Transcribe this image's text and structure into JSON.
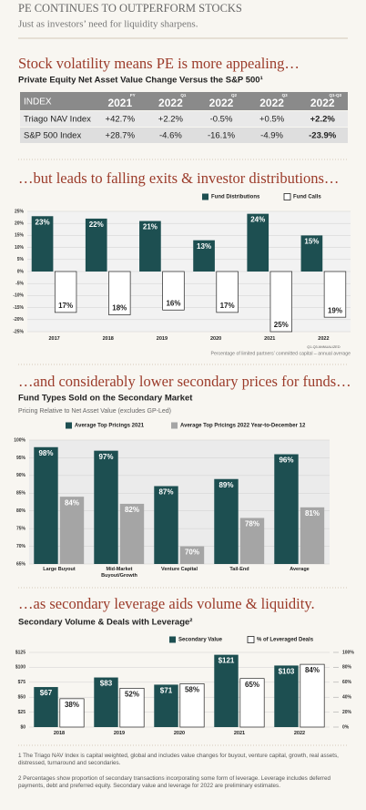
{
  "header": {
    "title": "PE CONTINUES TO OUTPERFORM STOCKS",
    "subtitle": "Just as investors’ need for liquidity sharpens."
  },
  "table_section": {
    "heading": "Stock volatility means PE is more appealing…",
    "subheading": "Private Equity Net Asset Value Change Versus the S&P 500¹"
  },
  "table": {
    "index_header": "INDEX",
    "columns": [
      {
        "period": "FY",
        "year": "2021"
      },
      {
        "period": "Q1",
        "year": "2022"
      },
      {
        "period": "Q2",
        "year": "2022"
      },
      {
        "period": "Q3",
        "year": "2022"
      },
      {
        "period": "Q1-Q3",
        "year": "2022"
      }
    ],
    "rows": [
      [
        "Triago NAV Index",
        "+42.7%",
        "+2.2%",
        "-0.5%",
        "+0.5%",
        "+2.2%"
      ],
      [
        "S&P 500  Index",
        "+28.7%",
        "-4.6%",
        "-16.1%",
        "-4.9%",
        "-23.9%"
      ]
    ]
  },
  "chart_data": [
    {
      "type": "bar",
      "title": "…but leads to falling exits & investor distributions…",
      "categories": [
        "2017",
        "2018",
        "2019",
        "2020",
        "2021",
        "2022"
      ],
      "category_note": "Q1-Q3 ANNUALIZED",
      "series": [
        {
          "name": "Fund Distributions",
          "color": "#1d4f51",
          "values": [
            23,
            22,
            21,
            13,
            24,
            15
          ],
          "value_labels": [
            "23%",
            "22%",
            "21%",
            "13%",
            "24%",
            "15%"
          ]
        },
        {
          "name": "Fund Calls",
          "color": "#ffffff",
          "values": [
            -17,
            -18,
            -16,
            -17,
            -25,
            -19
          ],
          "value_labels": [
            "17%",
            "18%",
            "16%",
            "17%",
            "25%",
            "19%"
          ]
        }
      ],
      "ylim": [
        -25,
        25
      ],
      "yticks": [
        {
          "value": 25,
          "label": "25%"
        },
        {
          "value": 20,
          "label": "20%"
        },
        {
          "value": 15,
          "label": "15%"
        },
        {
          "value": 10,
          "label": "10%"
        },
        {
          "value": 5,
          "label": "5%"
        },
        {
          "value": 0,
          "label": "0%"
        },
        {
          "value": -5,
          "label": "-5%"
        },
        {
          "value": -10,
          "label": "-10%"
        },
        {
          "value": -15,
          "label": "-15%"
        },
        {
          "value": -20,
          "label": "-20%"
        },
        {
          "value": -25,
          "label": "-25%"
        }
      ],
      "grid": true,
      "note": "Percentage of limited partners’ committed capital – annual average"
    },
    {
      "type": "bar",
      "title": "…and considerably lower secondary prices for funds…",
      "subtitle": "Fund Types Sold on the Secondary Market",
      "description": "Pricing Relative to Net Asset Value (excludes GP-Led)",
      "categories": [
        "Large Buyout",
        "Mid-Market Buyout/Growth",
        "Venture Capital",
        "Tail-End",
        "Average"
      ],
      "series": [
        {
          "name": "Average Top Pricings 2021",
          "color": "#1d4f51",
          "values": [
            98,
            97,
            87,
            89,
            96
          ],
          "value_labels": [
            "98%",
            "97%",
            "87%",
            "89%",
            "96%"
          ]
        },
        {
          "name": "Average Top Pricings 2022 Year-to-December 12",
          "color": "#a5a5a5",
          "values": [
            84,
            82,
            70,
            78,
            81
          ],
          "value_labels": [
            "84%",
            "82%",
            "70%",
            "78%",
            "81%"
          ]
        }
      ],
      "ylim": [
        65,
        100
      ],
      "yticks": [
        {
          "value": 100,
          "label": "100%"
        },
        {
          "value": 95,
          "label": "95%"
        },
        {
          "value": 90,
          "label": "90%"
        },
        {
          "value": 85,
          "label": "85%"
        },
        {
          "value": 80,
          "label": "80%"
        },
        {
          "value": 75,
          "label": "75%"
        },
        {
          "value": 70,
          "label": "70%"
        },
        {
          "value": 65,
          "label": "65%"
        }
      ],
      "grid": true
    },
    {
      "type": "bar",
      "title": "…as secondary leverage aids volume & liquidity.",
      "subtitle": "Secondary Volume & Deals with Leverage²",
      "categories": [
        "2018",
        "2019",
        "2020",
        "2021",
        "2022"
      ],
      "series": [
        {
          "name": "Secondary Value",
          "color": "#1d4f51",
          "values": [
            67,
            83,
            71,
            121,
            103
          ],
          "value_labels": [
            "$67",
            "$83",
            "$71",
            "$121",
            "$103"
          ]
        },
        {
          "name": "% of Leveraged Deals",
          "color": "#ffffff",
          "axis": "y2",
          "values": [
            38,
            52,
            58,
            65,
            84
          ],
          "value_labels": [
            "38%",
            "52%",
            "58%",
            "65%",
            "84%"
          ]
        }
      ],
      "ylim": [
        0,
        125
      ],
      "yticks": [
        {
          "value": 125,
          "label": "$125"
        },
        {
          "value": 100,
          "label": "$100"
        },
        {
          "value": 75,
          "label": "$75"
        },
        {
          "value": 50,
          "label": "$50"
        },
        {
          "value": 25,
          "label": "$25"
        },
        {
          "value": 0,
          "label": "$0"
        }
      ],
      "y2lim": [
        0,
        100
      ],
      "y2ticks": [
        {
          "value": 100,
          "label": "100%"
        },
        {
          "value": 80,
          "label": "80%"
        },
        {
          "value": 60,
          "label": "60%"
        },
        {
          "value": 40,
          "label": "40%"
        },
        {
          "value": 20,
          "label": "20%"
        },
        {
          "value": 0,
          "label": "0%"
        }
      ],
      "grid": true
    }
  ],
  "footnotes": [
    "1 The Triago NAV Index is capital weighted, global and includes value changes for buyout, venture capital, growth, real assets, distressed, turnaround and secondaries.",
    "2 Percentages show proportion of secondary transactions incorporating some form of leverage. Leverage includes deferred payments, debt and preferred equity. Secondary value and leverage for 2022 are preliminary estimates."
  ]
}
